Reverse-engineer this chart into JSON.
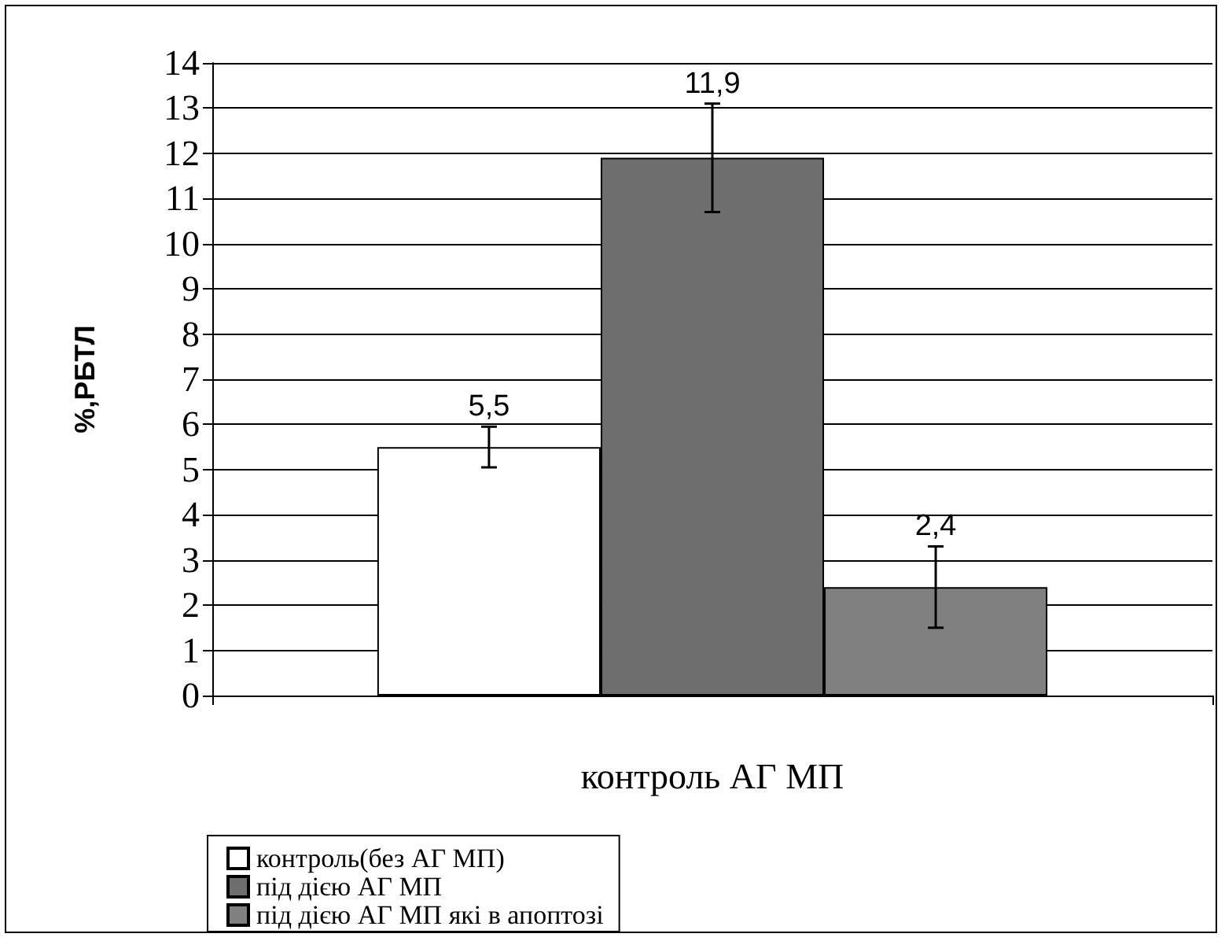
{
  "chart_data": {
    "type": "bar",
    "ylabel": "%,РБТЛ",
    "categories": [
      "контроль АГ МП"
    ],
    "series": [
      {
        "name": "контроль(без АГ МП)",
        "color": "#ffffff",
        "values": [
          5.5
        ],
        "errors": [
          0.45
        ],
        "value_labels": [
          "5,5"
        ]
      },
      {
        "name": "під дією АГ МП",
        "color": "#6e6e6e",
        "values": [
          11.9
        ],
        "errors": [
          1.2
        ],
        "value_labels": [
          "11,9"
        ]
      },
      {
        "name": "під дією АГ МП які в апоптозі",
        "color": "#808080",
        "values": [
          2.4
        ],
        "errors": [
          0.9
        ],
        "value_labels": [
          "2,4"
        ]
      }
    ],
    "ylim": [
      0,
      14
    ],
    "yticks": [
      0,
      1,
      2,
      3,
      4,
      5,
      6,
      7,
      8,
      9,
      10,
      11,
      12,
      13,
      14
    ],
    "grid": "y",
    "legend": "bottom"
  }
}
